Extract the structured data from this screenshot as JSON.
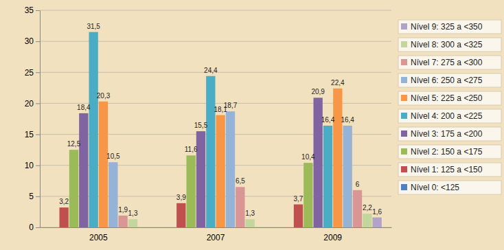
{
  "chart_data": {
    "type": "bar",
    "categories": [
      "2005",
      "2007",
      "2009"
    ],
    "series": [
      {
        "name": "Nível 0:  <125",
        "color": "#4f81bd",
        "values": [
          null,
          null,
          null
        ],
        "value_labels": [
          null,
          null,
          null
        ]
      },
      {
        "name": "Nível 1: 125 a <150",
        "color": "#c0504d",
        "values": [
          3.2,
          3.9,
          3.7
        ],
        "value_labels": [
          "3,2",
          "3,9",
          "3,7"
        ]
      },
      {
        "name": "Nível 2: 150 a <175",
        "color": "#9bbb59",
        "values": [
          12.5,
          11.6,
          10.4
        ],
        "value_labels": [
          "12,5",
          "11,6",
          "10,4"
        ]
      },
      {
        "name": "Nível 3: 175 a <200",
        "color": "#8064a2",
        "values": [
          18.4,
          15.5,
          20.9
        ],
        "value_labels": [
          "18,4",
          "15,5",
          "20,9"
        ]
      },
      {
        "name": "Nível 4: 200 a <225",
        "color": "#4bacc6",
        "values": [
          31.5,
          24.4,
          16.4
        ],
        "value_labels": [
          "31,5",
          "24,4",
          "16,4"
        ]
      },
      {
        "name": "Nível 5: 225 a <250",
        "color": "#f79646",
        "values": [
          20.3,
          18.1,
          22.4
        ],
        "value_labels": [
          "20,3",
          "18,1",
          "22,4"
        ]
      },
      {
        "name": "Nível 6: 250 a <275",
        "color": "#95b3d7",
        "values": [
          10.5,
          18.7,
          16.4
        ],
        "value_labels": [
          "10,5",
          "18,7",
          "16,4"
        ]
      },
      {
        "name": "Nível 7: 275 a <300",
        "color": "#d99694",
        "values": [
          1.9,
          6.5,
          6
        ],
        "value_labels": [
          "1,9",
          "6,5",
          "6"
        ]
      },
      {
        "name": "Nível 8: 300 a <325",
        "color": "#c3d69b",
        "values": [
          1.3,
          1.3,
          2.2
        ],
        "value_labels": [
          "1,3",
          "1,3",
          "2,2"
        ]
      },
      {
        "name": "Nível 9: 325 a <350",
        "color": "#b3a2c7",
        "values": [
          null,
          null,
          1.6
        ],
        "value_labels": [
          null,
          null,
          "1,6"
        ]
      }
    ],
    "ylim": [
      0,
      35
    ],
    "yticks": [
      0,
      5,
      10,
      15,
      20,
      25,
      30,
      35
    ],
    "grid": true,
    "legend": "right",
    "data_labels": true
  }
}
